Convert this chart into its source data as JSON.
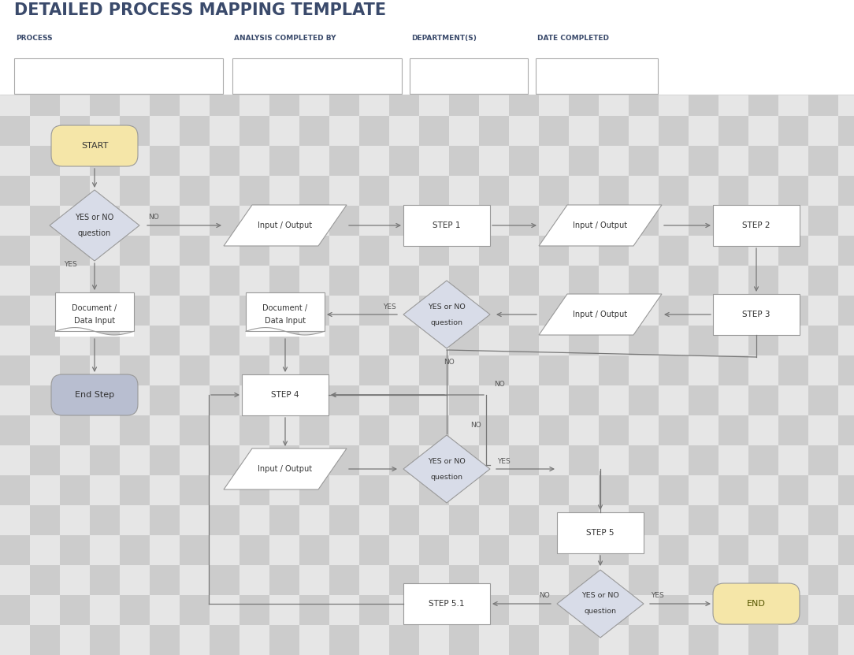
{
  "title": "DETAILED PROCESS MAPPING TEMPLATE",
  "title_color": "#3a4a6b",
  "title_fontsize": 15,
  "header_labels": [
    "PROCESS",
    "ANALYSIS COMPLETED BY",
    "DEPARTMENT(S)",
    "DATE COMPLETED"
  ],
  "header_color": "#3a4a6b",
  "header_fontsize": 6.5,
  "bg_color": "#ffffff",
  "checker_light": "#e6e6e6",
  "checker_dark": "#cccccc",
  "shape_border_color": "#999999",
  "shape_fill_white": "#ffffff",
  "shape_fill_yellow": "#f5e6a8",
  "shape_fill_blue_gray": "#b8bed0",
  "shape_fill_diamond": "#d8dce8",
  "arrow_color": "#777777",
  "text_color": "#333333",
  "label_color": "#555555"
}
